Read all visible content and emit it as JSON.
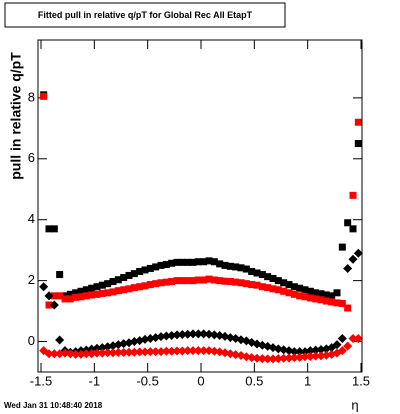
{
  "chart_data": {
    "type": "scatter",
    "title": "Fitted pull in relative q/pT for Global Rec All EtapT",
    "y_label": "pull in relative q/pT",
    "x_label": "η",
    "footer": "Wed Jan 31 10:48:40 2018",
    "xlim": [
      -1.5,
      1.5
    ],
    "ylim": [
      -1,
      9.9
    ],
    "xticks": [
      -1.5,
      -1,
      -0.5,
      0,
      0.5,
      1,
      1.5
    ],
    "yticks": [
      0,
      2,
      4,
      6,
      8
    ],
    "x": [
      -1.475,
      -1.425,
      -1.375,
      -1.325,
      -1.275,
      -1.225,
      -1.175,
      -1.125,
      -1.075,
      -1.025,
      -0.975,
      -0.925,
      -0.875,
      -0.825,
      -0.775,
      -0.725,
      -0.675,
      -0.625,
      -0.575,
      -0.525,
      -0.475,
      -0.425,
      -0.375,
      -0.325,
      -0.275,
      -0.225,
      -0.175,
      -0.125,
      -0.075,
      -0.025,
      0.025,
      0.075,
      0.125,
      0.175,
      0.225,
      0.275,
      0.325,
      0.375,
      0.425,
      0.475,
      0.525,
      0.575,
      0.625,
      0.675,
      0.725,
      0.775,
      0.825,
      0.875,
      0.925,
      0.975,
      1.025,
      1.075,
      1.125,
      1.175,
      1.225,
      1.275,
      1.325,
      1.375,
      1.425,
      1.475
    ],
    "series": [
      {
        "marker": "square",
        "color": "#000000",
        "values": [
          8.1,
          3.7,
          3.7,
          2.2,
          1.5,
          1.55,
          1.6,
          1.65,
          1.7,
          1.75,
          1.8,
          1.85,
          1.9,
          1.97,
          2.03,
          2.1,
          2.17,
          2.23,
          2.3,
          2.35,
          2.4,
          2.45,
          2.5,
          2.53,
          2.57,
          2.6,
          2.6,
          2.6,
          2.6,
          2.62,
          2.62,
          2.65,
          2.62,
          2.55,
          2.5,
          2.47,
          2.45,
          2.42,
          2.38,
          2.3,
          2.25,
          2.2,
          2.13,
          2.07,
          2.0,
          1.93,
          1.87,
          1.8,
          1.75,
          1.7,
          1.65,
          1.6,
          1.57,
          1.53,
          1.5,
          1.6,
          3.1,
          3.9,
          3.7,
          6.5
        ]
      },
      {
        "marker": "square",
        "color": "#ff0000",
        "values": [
          8.05,
          1.2,
          1.5,
          1.5,
          1.4,
          1.4,
          1.45,
          1.47,
          1.5,
          1.53,
          1.55,
          1.58,
          1.6,
          1.63,
          1.67,
          1.7,
          1.73,
          1.77,
          1.8,
          1.83,
          1.87,
          1.9,
          1.93,
          1.95,
          1.97,
          2.0,
          2.0,
          2.0,
          2.0,
          2.02,
          2.02,
          2.05,
          2.02,
          2.0,
          1.98,
          1.97,
          1.95,
          1.93,
          1.9,
          1.87,
          1.85,
          1.8,
          1.77,
          1.73,
          1.7,
          1.65,
          1.6,
          1.55,
          1.5,
          1.47,
          1.43,
          1.4,
          1.37,
          1.33,
          1.3,
          1.27,
          1.25,
          1.1,
          4.8,
          7.2
        ]
      },
      {
        "marker": "diamond",
        "color": "#000000",
        "values": [
          1.8,
          1.5,
          1.2,
          0.05,
          -0.3,
          -0.35,
          -0.33,
          -0.3,
          -0.28,
          -0.25,
          -0.22,
          -0.2,
          -0.17,
          -0.14,
          -0.1,
          -0.07,
          -0.04,
          0,
          0.03,
          0.07,
          0.1,
          0.13,
          0.16,
          0.18,
          0.2,
          0.22,
          0.23,
          0.24,
          0.25,
          0.25,
          0.25,
          0.24,
          0.22,
          0.2,
          0.17,
          0.13,
          0.1,
          0.06,
          0.02,
          -0.03,
          -0.08,
          -0.12,
          -0.16,
          -0.2,
          -0.24,
          -0.27,
          -0.3,
          -0.33,
          -0.33,
          -0.33,
          -0.3,
          -0.28,
          -0.26,
          -0.24,
          -0.2,
          -0.1,
          0.1,
          2.4,
          2.7,
          2.9
        ]
      },
      {
        "marker": "diamond",
        "color": "#ff0000",
        "values": [
          -0.3,
          -0.4,
          -0.4,
          -0.4,
          -0.38,
          -0.4,
          -0.42,
          -0.42,
          -0.4,
          -0.4,
          -0.38,
          -0.38,
          -0.37,
          -0.37,
          -0.36,
          -0.36,
          -0.35,
          -0.35,
          -0.34,
          -0.34,
          -0.33,
          -0.33,
          -0.33,
          -0.32,
          -0.32,
          -0.31,
          -0.31,
          -0.3,
          -0.3,
          -0.3,
          -0.3,
          -0.3,
          -0.32,
          -0.34,
          -0.37,
          -0.4,
          -0.43,
          -0.46,
          -0.5,
          -0.53,
          -0.55,
          -0.56,
          -0.57,
          -0.57,
          -0.56,
          -0.55,
          -0.54,
          -0.53,
          -0.52,
          -0.5,
          -0.49,
          -0.48,
          -0.47,
          -0.45,
          -0.42,
          -0.38,
          -0.3,
          -0.15,
          0.1,
          0.1
        ]
      }
    ]
  }
}
